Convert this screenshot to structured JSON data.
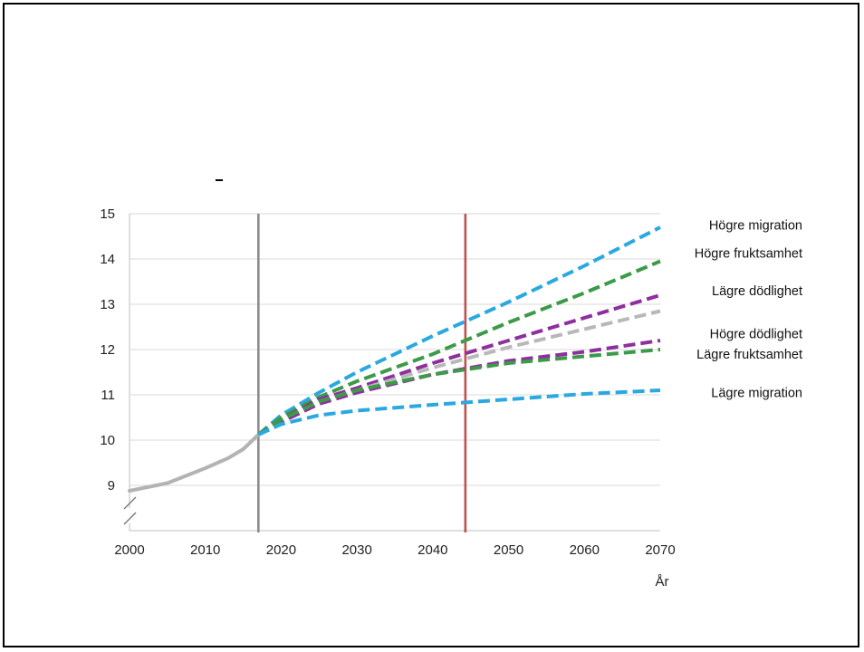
{
  "chart_data": {
    "type": "line",
    "title": "",
    "xlabel": "År",
    "ylabel": "",
    "xlim": [
      2000,
      2070
    ],
    "ylim": [
      8,
      15
    ],
    "x_ticks": [
      2000,
      2010,
      2020,
      2030,
      2040,
      2050,
      2060,
      2070
    ],
    "y_ticks": [
      9,
      10,
      11,
      12,
      13,
      14,
      15
    ],
    "grid": "horizontal",
    "axis_break": true,
    "reference_lines": [
      {
        "x": 2017,
        "color": "#8c8c8c"
      },
      {
        "x": 2044.3,
        "color": "#c0504d"
      }
    ],
    "historical": {
      "color": "#b3b3b3",
      "points": [
        [
          2000,
          8.88
        ],
        [
          2005,
          9.05
        ],
        [
          2010,
          9.38
        ],
        [
          2013,
          9.6
        ],
        [
          2015,
          9.8
        ],
        [
          2017,
          10.12
        ]
      ]
    },
    "series": [
      {
        "name": "Högre migration",
        "color": "#2aa9e0",
        "points": [
          [
            2017,
            10.12
          ],
          [
            2020,
            10.55
          ],
          [
            2025,
            11.05
          ],
          [
            2030,
            11.5
          ],
          [
            2040,
            12.3
          ],
          [
            2050,
            13.05
          ],
          [
            2060,
            13.85
          ],
          [
            2070,
            14.7
          ]
        ]
      },
      {
        "name": "Högre fruktsamhet",
        "color": "#3c9a48",
        "points": [
          [
            2017,
            10.12
          ],
          [
            2020,
            10.5
          ],
          [
            2025,
            10.95
          ],
          [
            2030,
            11.3
          ],
          [
            2040,
            11.9
          ],
          [
            2050,
            12.6
          ],
          [
            2060,
            13.25
          ],
          [
            2070,
            13.95
          ]
        ]
      },
      {
        "name": "Lägre dödlighet",
        "color": "#8e2f9f",
        "points": [
          [
            2017,
            10.12
          ],
          [
            2020,
            10.45
          ],
          [
            2025,
            10.9
          ],
          [
            2030,
            11.15
          ],
          [
            2040,
            11.7
          ],
          [
            2050,
            12.2
          ],
          [
            2060,
            12.7
          ],
          [
            2070,
            13.2
          ]
        ]
      },
      {
        "name": "",
        "color": "#b8b8b8",
        "points": [
          [
            2017,
            10.12
          ],
          [
            2020,
            10.42
          ],
          [
            2025,
            10.85
          ],
          [
            2030,
            11.1
          ],
          [
            2040,
            11.6
          ],
          [
            2050,
            12.05
          ],
          [
            2060,
            12.45
          ],
          [
            2070,
            12.85
          ]
        ]
      },
      {
        "name": "Högre dödlighet",
        "color": "#8e2f9f",
        "points": [
          [
            2017,
            10.12
          ],
          [
            2020,
            10.4
          ],
          [
            2025,
            10.8
          ],
          [
            2030,
            11.05
          ],
          [
            2040,
            11.45
          ],
          [
            2050,
            11.75
          ],
          [
            2060,
            11.95
          ],
          [
            2070,
            12.2
          ]
        ]
      },
      {
        "name": "Lägre fruktsamhet",
        "color": "#3c9a48",
        "points": [
          [
            2017,
            10.12
          ],
          [
            2020,
            10.45
          ],
          [
            2025,
            10.85
          ],
          [
            2030,
            11.1
          ],
          [
            2040,
            11.45
          ],
          [
            2050,
            11.7
          ],
          [
            2060,
            11.85
          ],
          [
            2070,
            12.0
          ]
        ]
      },
      {
        "name": "Lägre migration",
        "color": "#2aa9e0",
        "points": [
          [
            2017,
            10.12
          ],
          [
            2020,
            10.35
          ],
          [
            2025,
            10.55
          ],
          [
            2030,
            10.65
          ],
          [
            2040,
            10.78
          ],
          [
            2050,
            10.9
          ],
          [
            2060,
            11.02
          ],
          [
            2070,
            11.1
          ]
        ]
      }
    ],
    "legend_labels_y": [
      14.75,
      14.13,
      13.3,
      12.35,
      11.9,
      11.05
    ]
  },
  "slide": {
    "dash": "-"
  }
}
